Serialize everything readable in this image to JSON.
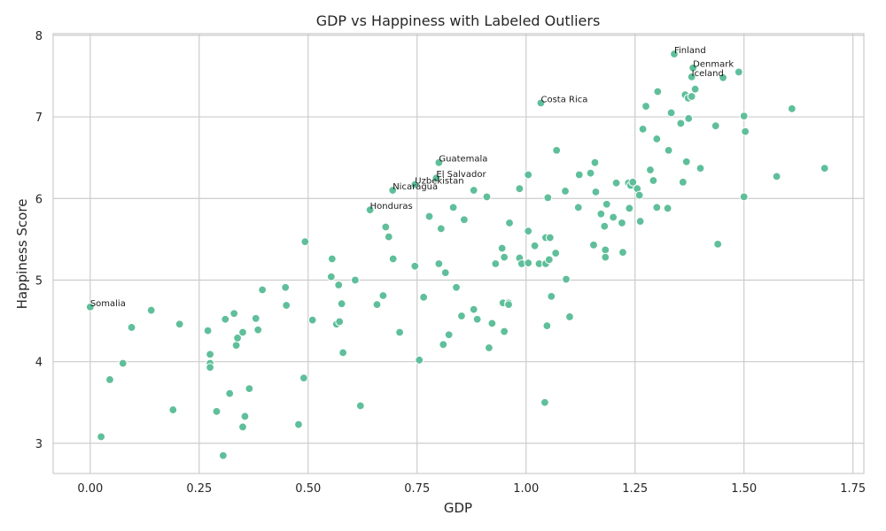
{
  "chart_data": {
    "type": "scatter",
    "title": "GDP vs Happiness with Labeled Outliers",
    "xlabel": "GDP",
    "ylabel": "Happiness Score",
    "xlim": [
      -0.085,
      1.775
    ],
    "ylim": [
      2.63,
      8.02
    ],
    "xticks": [
      0.0,
      0.25,
      0.5,
      0.75,
      1.0,
      1.25,
      1.5,
      1.75
    ],
    "xtick_labels": [
      "0.00",
      "0.25",
      "0.50",
      "0.75",
      "1.00",
      "1.25",
      "1.50",
      "1.75"
    ],
    "yticks": [
      3,
      4,
      5,
      6,
      7,
      8
    ],
    "ytick_labels": [
      "3",
      "4",
      "5",
      "6",
      "7",
      "8"
    ],
    "grid": true,
    "point_color": "#5fbf9a",
    "labeled_points": [
      {
        "label": "Finland",
        "x": 1.34,
        "y": 7.77
      },
      {
        "label": "Denmark",
        "x": 1.383,
        "y": 7.6
      },
      {
        "label": "Iceland",
        "x": 1.38,
        "y": 7.49
      },
      {
        "label": "Costa Rica",
        "x": 1.034,
        "y": 7.17
      },
      {
        "label": "Guatemala",
        "x": 0.8,
        "y": 6.44
      },
      {
        "label": "El Salvador",
        "x": 0.794,
        "y": 6.25
      },
      {
        "label": "Uzbekistan",
        "x": 0.745,
        "y": 6.17
      },
      {
        "label": "Nicaragua",
        "x": 0.694,
        "y": 6.1
      },
      {
        "label": "Honduras",
        "x": 0.642,
        "y": 5.86
      },
      {
        "label": "Somalia",
        "x": 0.0,
        "y": 4.67
      }
    ],
    "points": [
      [
        0.025,
        3.08
      ],
      [
        0.045,
        3.78
      ],
      [
        0.075,
        3.98
      ],
      [
        0.095,
        4.42
      ],
      [
        0.14,
        4.63
      ],
      [
        0.19,
        3.41
      ],
      [
        0.205,
        4.46
      ],
      [
        0.27,
        4.38
      ],
      [
        0.275,
        4.09
      ],
      [
        0.275,
        3.98
      ],
      [
        0.275,
        3.93
      ],
      [
        0.29,
        3.39
      ],
      [
        0.305,
        2.85
      ],
      [
        0.31,
        4.52
      ],
      [
        0.32,
        3.61
      ],
      [
        0.33,
        4.59
      ],
      [
        0.335,
        4.2
      ],
      [
        0.338,
        4.29
      ],
      [
        0.35,
        4.36
      ],
      [
        0.35,
        3.2
      ],
      [
        0.355,
        3.33
      ],
      [
        0.365,
        3.67
      ],
      [
        0.38,
        4.53
      ],
      [
        0.385,
        4.39
      ],
      [
        0.395,
        4.88
      ],
      [
        0.448,
        4.91
      ],
      [
        0.45,
        4.69
      ],
      [
        0.478,
        3.23
      ],
      [
        0.49,
        3.8
      ],
      [
        0.493,
        5.47
      ],
      [
        0.51,
        4.51
      ],
      [
        0.553,
        5.04
      ],
      [
        0.555,
        5.26
      ],
      [
        0.565,
        4.46
      ],
      [
        0.57,
        4.94
      ],
      [
        0.572,
        4.49
      ],
      [
        0.577,
        4.71
      ],
      [
        0.58,
        4.11
      ],
      [
        0.608,
        5.0
      ],
      [
        0.62,
        3.46
      ],
      [
        0.658,
        4.7
      ],
      [
        0.672,
        4.81
      ],
      [
        0.678,
        5.65
      ],
      [
        0.685,
        5.53
      ],
      [
        0.695,
        5.26
      ],
      [
        0.71,
        4.36
      ],
      [
        0.745,
        5.17
      ],
      [
        0.755,
        4.02
      ],
      [
        0.765,
        4.79
      ],
      [
        0.778,
        5.78
      ],
      [
        0.8,
        5.2
      ],
      [
        0.805,
        5.63
      ],
      [
        0.81,
        4.21
      ],
      [
        0.815,
        5.09
      ],
      [
        0.823,
        4.33
      ],
      [
        0.833,
        5.89
      ],
      [
        0.84,
        4.91
      ],
      [
        0.852,
        4.56
      ],
      [
        0.858,
        5.74
      ],
      [
        0.88,
        6.1
      ],
      [
        0.88,
        4.64
      ],
      [
        0.888,
        4.52
      ],
      [
        0.91,
        6.02
      ],
      [
        0.915,
        4.17
      ],
      [
        0.922,
        4.47
      ],
      [
        0.93,
        5.2
      ],
      [
        0.945,
        5.39
      ],
      [
        0.947,
        4.72
      ],
      [
        0.95,
        5.28
      ],
      [
        0.95,
        4.37
      ],
      [
        0.96,
        4.72
      ],
      [
        0.96,
        4.7
      ],
      [
        0.962,
        5.7
      ],
      [
        0.985,
        6.12
      ],
      [
        0.985,
        5.27
      ],
      [
        0.99,
        5.2
      ],
      [
        1.005,
        6.29
      ],
      [
        1.005,
        5.6
      ],
      [
        1.005,
        5.21
      ],
      [
        1.02,
        5.42
      ],
      [
        1.03,
        5.2
      ],
      [
        1.043,
        3.5
      ],
      [
        1.045,
        5.52
      ],
      [
        1.045,
        5.2
      ],
      [
        1.048,
        4.44
      ],
      [
        1.05,
        6.01
      ],
      [
        1.053,
        5.25
      ],
      [
        1.055,
        5.52
      ],
      [
        1.058,
        4.8
      ],
      [
        1.068,
        5.33
      ],
      [
        1.07,
        6.59
      ],
      [
        1.09,
        6.09
      ],
      [
        1.092,
        5.01
      ],
      [
        1.1,
        4.55
      ],
      [
        1.12,
        5.89
      ],
      [
        1.122,
        6.29
      ],
      [
        1.148,
        6.31
      ],
      [
        1.155,
        5.43
      ],
      [
        1.158,
        6.44
      ],
      [
        1.16,
        6.08
      ],
      [
        1.172,
        5.81
      ],
      [
        1.18,
        5.66
      ],
      [
        1.182,
        5.37
      ],
      [
        1.182,
        5.28
      ],
      [
        1.185,
        5.93
      ],
      [
        1.2,
        5.77
      ],
      [
        1.207,
        6.19
      ],
      [
        1.22,
        5.7
      ],
      [
        1.222,
        5.34
      ],
      [
        1.235,
        6.19
      ],
      [
        1.237,
        5.88
      ],
      [
        1.24,
        6.16
      ],
      [
        1.245,
        6.2
      ],
      [
        1.255,
        6.12
      ],
      [
        1.26,
        6.04
      ],
      [
        1.262,
        5.72
      ],
      [
        1.268,
        6.85
      ],
      [
        1.275,
        7.13
      ],
      [
        1.285,
        6.35
      ],
      [
        1.292,
        6.22
      ],
      [
        1.3,
        6.73
      ],
      [
        1.3,
        5.89
      ],
      [
        1.302,
        7.31
      ],
      [
        1.325,
        5.88
      ],
      [
        1.327,
        6.59
      ],
      [
        1.333,
        7.05
      ],
      [
        1.355,
        6.92
      ],
      [
        1.36,
        6.2
      ],
      [
        1.365,
        7.27
      ],
      [
        1.368,
        6.45
      ],
      [
        1.372,
        7.23
      ],
      [
        1.373,
        6.98
      ],
      [
        1.38,
        7.25
      ],
      [
        1.388,
        7.34
      ],
      [
        1.4,
        6.37
      ],
      [
        1.435,
        6.89
      ],
      [
        1.44,
        5.44
      ],
      [
        1.452,
        7.48
      ],
      [
        1.488,
        7.55
      ],
      [
        1.5,
        7.01
      ],
      [
        1.5,
        6.02
      ],
      [
        1.503,
        6.82
      ],
      [
        1.575,
        6.27
      ],
      [
        1.61,
        7.1
      ],
      [
        1.685,
        6.37
      ]
    ]
  }
}
